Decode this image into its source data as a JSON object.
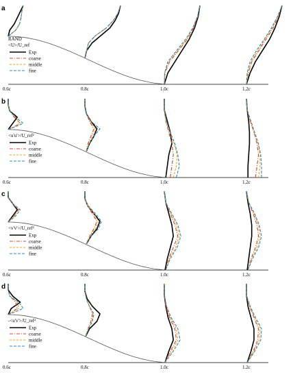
{
  "chart_data": {
    "type": "line",
    "description_units": "Wall-normal profiles of mean velocity and Reynolds stresses at four streamwise stations over a curved hill surface",
    "stations": [
      "0.6c",
      "0.8c",
      "1.0c",
      "1.2c"
    ],
    "legend": [
      "Exp",
      "coarse",
      "middle",
      "fine"
    ],
    "series_colors": {
      "Exp": "#000000",
      "coarse": "#d9442a",
      "middle": "#f4a21b",
      "fine": "#2b88c9"
    },
    "series_dash": {
      "Exp": "none",
      "coarse": "5 2 1 2",
      "middle": "3 2",
      "fine": "4 2"
    },
    "panels": [
      {
        "letter": "a",
        "header_text": "RAND",
        "quantity_label": "<U>/U_ref",
        "profiles": [
          {
            "station": "0.6c",
            "Exp": [
              0,
              0.1,
              0.4,
              0.6,
              0.8,
              1
            ],
            "coarse": [
              0,
              0.5,
              0.75,
              0.85,
              0.9,
              1
            ],
            "middle": [
              0,
              0.5,
              0.75,
              0.85,
              0.9,
              1
            ],
            "fine": [
              0,
              0.5,
              0.75,
              0.85,
              0.9,
              1
            ]
          },
          {
            "station": "0.8c",
            "Exp": [
              0,
              0.05,
              0.2,
              0.45,
              0.7,
              0.85,
              0.95,
              1
            ],
            "coarse": [
              0,
              0.05,
              0.1,
              0.3,
              0.6,
              0.8,
              0.93,
              1
            ],
            "middle": [
              0,
              0.05,
              0.1,
              0.3,
              0.6,
              0.8,
              0.93,
              1
            ],
            "fine": [
              0,
              0.05,
              0.1,
              0.3,
              0.6,
              0.8,
              0.93,
              1
            ]
          },
          {
            "station": "1.0c",
            "Exp": [
              0,
              0.1,
              0.3,
              0.5,
              0.7,
              0.85,
              0.95,
              1
            ],
            "coarse": [
              0,
              0.02,
              0.15,
              0.4,
              0.65,
              0.82,
              0.94,
              1
            ],
            "middle": [
              0,
              0.01,
              0.12,
              0.38,
              0.63,
              0.8,
              0.93,
              1
            ],
            "fine": [
              0,
              0.01,
              0.1,
              0.35,
              0.6,
              0.8,
              0.93,
              1
            ]
          },
          {
            "station": "1.2c",
            "Exp": [
              0,
              0.1,
              0.25,
              0.45,
              0.65,
              0.8,
              0.92,
              1
            ],
            "coarse": [
              0,
              0.05,
              0.15,
              0.35,
              0.55,
              0.75,
              0.9,
              1
            ],
            "middle": [
              0,
              0.04,
              0.13,
              0.32,
              0.52,
              0.72,
              0.88,
              1
            ],
            "fine": [
              0,
              0.02,
              0.1,
              0.28,
              0.5,
              0.7,
              0.87,
              1
            ]
          }
        ]
      },
      {
        "letter": "b",
        "quantity_label": "<u'u'>/U_ref²",
        "profiles": [
          {
            "station": "0.6c",
            "Exp": [
              0,
              0.3,
              0.6,
              0.1,
              0,
              0
            ],
            "coarse": [
              0,
              0.8,
              0.4,
              0.1,
              0,
              0
            ],
            "middle": [
              0,
              0.8,
              0.45,
              0.1,
              0,
              0
            ],
            "fine": [
              0,
              1,
              0.5,
              0.1,
              0,
              0
            ]
          },
          {
            "station": "0.8c",
            "Exp": [
              0.1,
              0.3,
              0.6,
              0.8,
              0.4,
              0.1,
              0,
              0
            ],
            "coarse": [
              0.1,
              0.2,
              0.4,
              0.6,
              0.3,
              0.1,
              0,
              0
            ],
            "middle": [
              0.1,
              0.25,
              0.5,
              0.7,
              0.35,
              0.1,
              0,
              0
            ],
            "fine": [
              0.1,
              0.3,
              0.6,
              1,
              0.4,
              0.1,
              0,
              0
            ]
          },
          {
            "station": "1.0c",
            "Exp": [
              0.1,
              0.2,
              0.3,
              0.5,
              0.4,
              0.2,
              0,
              0
            ],
            "coarse": [
              0.4,
              0.5,
              0.6,
              0.5,
              0.3,
              0.1,
              0,
              0
            ],
            "middle": [
              0.6,
              0.8,
              0.85,
              0.65,
              0.35,
              0.1,
              0,
              0
            ],
            "fine": [
              0.8,
              1,
              0.9,
              0.7,
              0.4,
              0.15,
              0,
              0
            ]
          },
          {
            "station": "1.2c",
            "Exp": [
              0.1,
              0.1,
              0.15,
              0.2,
              0.2,
              0.15,
              0.05,
              0
            ],
            "coarse": [
              0.6,
              0.7,
              0.8,
              0.7,
              0.5,
              0.25,
              0.05,
              0
            ],
            "middle": [
              0.8,
              0.9,
              0.9,
              0.75,
              0.5,
              0.25,
              0.05,
              0
            ],
            "fine": [
              1,
              1,
              0.95,
              0.8,
              0.55,
              0.3,
              0.05,
              0
            ]
          }
        ]
      },
      {
        "letter": "c",
        "quantity_label": "<v'v'>/U_ref²",
        "profiles": [
          {
            "station": "0.6c",
            "Exp": [
              0,
              0.3,
              0.6,
              0.3,
              0,
              0
            ],
            "coarse": [
              0,
              0.4,
              0.7,
              0.3,
              0,
              0
            ],
            "middle": [
              0,
              0.4,
              0.7,
              0.3,
              0,
              0
            ],
            "fine": [
              0,
              0.5,
              0.8,
              0.3,
              0,
              0
            ]
          },
          {
            "station": "0.8c",
            "Exp": [
              0.1,
              0.4,
              0.8,
              1,
              0.6,
              0.2,
              0,
              0
            ],
            "coarse": [
              0.1,
              0.3,
              0.6,
              0.8,
              0.5,
              0.2,
              0,
              0
            ],
            "middle": [
              0.1,
              0.3,
              0.7,
              0.9,
              0.6,
              0.2,
              0,
              0
            ],
            "fine": [
              0.1,
              0.4,
              0.9,
              1.1,
              0.7,
              0.25,
              0,
              0
            ]
          },
          {
            "station": "1.0c",
            "Exp": [
              0.05,
              0.2,
              0.4,
              0.6,
              0.5,
              0.3,
              0.1,
              0
            ],
            "coarse": [
              0.1,
              0.3,
              0.6,
              0.9,
              0.7,
              0.4,
              0.1,
              0
            ],
            "middle": [
              0.1,
              0.35,
              0.75,
              1,
              0.8,
              0.45,
              0.1,
              0
            ],
            "fine": [
              0.1,
              0.4,
              0.85,
              1.1,
              0.9,
              0.5,
              0.1,
              0
            ]
          },
          {
            "station": "1.2c",
            "Exp": [
              0.05,
              0.15,
              0.25,
              0.35,
              0.35,
              0.25,
              0.1,
              0
            ],
            "coarse": [
              0.1,
              0.3,
              0.6,
              0.8,
              0.7,
              0.45,
              0.15,
              0
            ],
            "middle": [
              0.1,
              0.35,
              0.7,
              0.9,
              0.8,
              0.5,
              0.15,
              0
            ],
            "fine": [
              0.1,
              0.4,
              0.8,
              1,
              0.85,
              0.55,
              0.15,
              0
            ]
          }
        ]
      },
      {
        "letter": "d",
        "quantity_label": "-<u'v'>/U_ref²",
        "profiles": [
          {
            "station": "0.6c",
            "Exp": [
              0,
              0.2,
              0.8,
              0.3,
              0,
              0
            ],
            "coarse": [
              0,
              0.6,
              0.5,
              0.1,
              0,
              0
            ],
            "middle": [
              0,
              0.7,
              0.6,
              0.1,
              0,
              0
            ],
            "fine": [
              0,
              1,
              0.7,
              0.1,
              0,
              0
            ]
          },
          {
            "station": "0.8c",
            "Exp": [
              0.05,
              0.3,
              0.8,
              1,
              0.5,
              0.15,
              0,
              0
            ],
            "coarse": [
              0.05,
              0.2,
              0.4,
              0.5,
              0.3,
              0.1,
              0,
              0
            ],
            "middle": [
              0.05,
              0.2,
              0.45,
              0.55,
              0.3,
              0.1,
              0,
              0
            ],
            "fine": [
              0.05,
              0.25,
              0.5,
              0.6,
              0.3,
              0.1,
              0,
              0
            ]
          },
          {
            "station": "1.0c",
            "Exp": [
              0.05,
              0.3,
              0.6,
              0.5,
              0.25,
              0.1,
              0,
              0
            ],
            "coarse": [
              0.05,
              0.4,
              0.8,
              0.7,
              0.35,
              0.1,
              0,
              0
            ],
            "middle": [
              0.05,
              0.5,
              0.9,
              0.8,
              0.4,
              0.15,
              0,
              0
            ],
            "fine": [
              0.05,
              0.6,
              1.05,
              0.9,
              0.45,
              0.15,
              0,
              0
            ]
          },
          {
            "station": "1.2c",
            "Exp": [
              0.05,
              0.3,
              0.5,
              0.5,
              0.3,
              0.1,
              0,
              0
            ],
            "coarse": [
              0.05,
              0.45,
              0.75,
              0.8,
              0.5,
              0.2,
              0,
              0
            ],
            "middle": [
              0.05,
              0.5,
              0.85,
              0.9,
              0.55,
              0.2,
              0,
              0
            ],
            "fine": [
              0.05,
              0.55,
              0.95,
              1,
              0.6,
              0.25,
              0,
              0
            ]
          }
        ]
      }
    ]
  }
}
